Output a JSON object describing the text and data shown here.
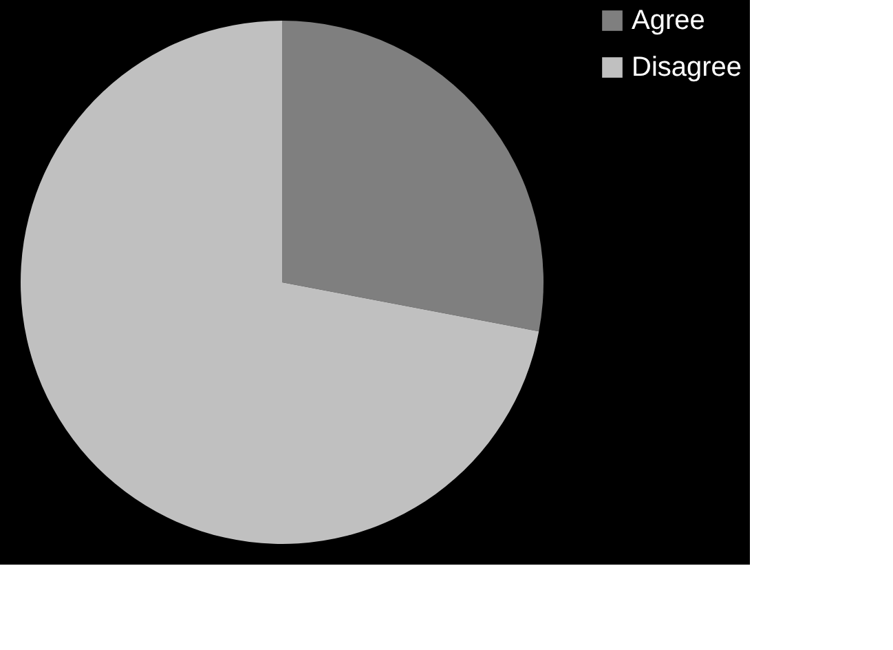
{
  "chart_data": {
    "type": "pie",
    "categories": [
      "Agree",
      "Disagree"
    ],
    "values": [
      28,
      72
    ],
    "colors": [
      "#7f7f7f",
      "#c0c0c0"
    ],
    "legend": "right"
  }
}
